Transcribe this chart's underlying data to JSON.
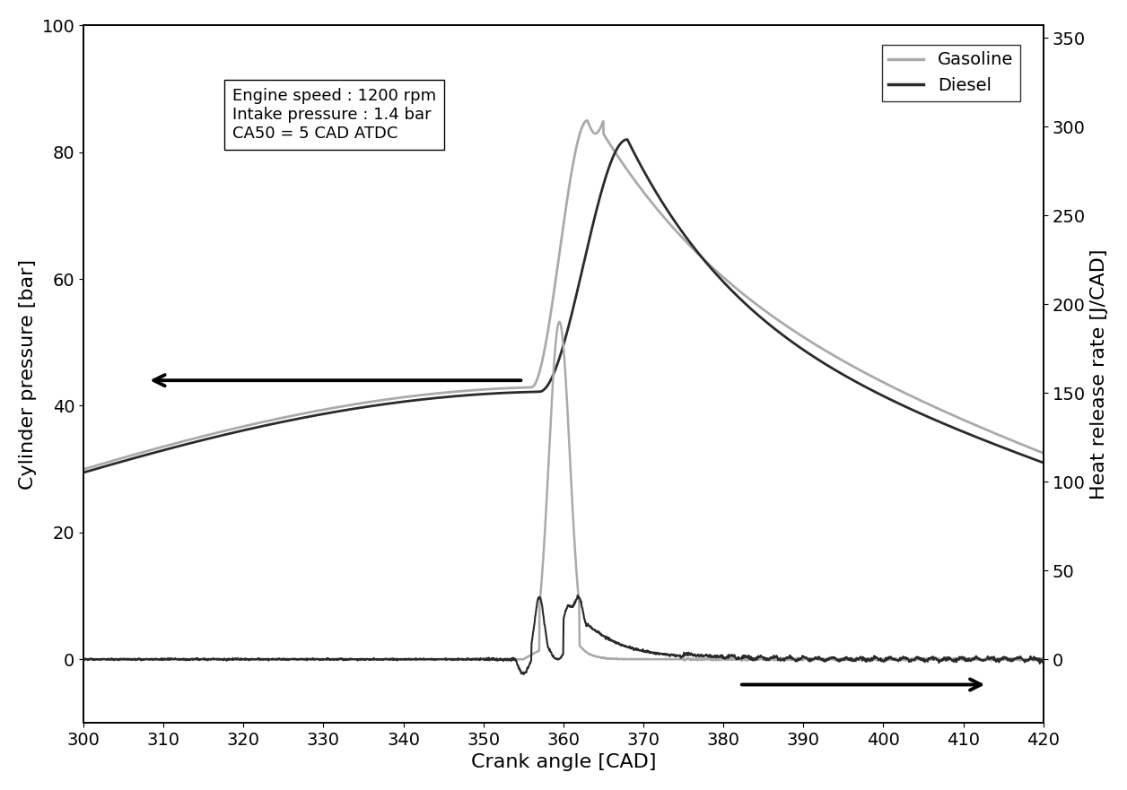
{
  "xlabel": "Crank angle [CAD]",
  "ylabel_left": "Cylinder pressure [bar]",
  "ylabel_right": "Heat release rate [J/CAD]",
  "xlim": [
    300,
    420
  ],
  "ylim_left": [
    -10,
    100
  ],
  "ylim_right": [
    -35.7,
    357
  ],
  "xticks": [
    300,
    310,
    320,
    330,
    340,
    350,
    360,
    370,
    380,
    390,
    400,
    410,
    420
  ],
  "yticks_left": [
    0,
    20,
    40,
    60,
    80,
    100
  ],
  "yticks_right": [
    0,
    50,
    100,
    150,
    200,
    250,
    300,
    350
  ],
  "gasoline_color": "#aaaaaa",
  "diesel_color": "#2a2a2a",
  "annotation_text": "Engine speed : 1200 rpm\nIntake pressure : 1.4 bar\nCA50 = 5 CAD ATDC",
  "legend_gasoline": "Gasoline",
  "legend_diesel": "Diesel"
}
